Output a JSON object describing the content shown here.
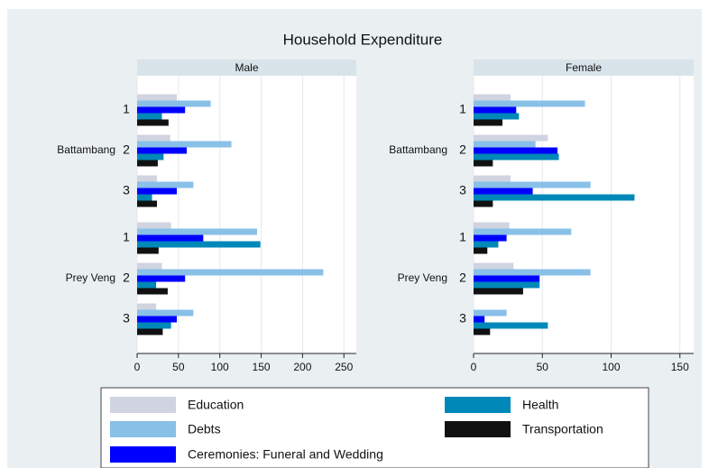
{
  "chart_data": {
    "type": "hbar",
    "title": "Household Expenditure",
    "groups": [
      {
        "name": "Battambang",
        "categories": [
          "1",
          "2",
          "3"
        ]
      },
      {
        "name": "Prey Veng",
        "categories": [
          "1",
          "2",
          "3"
        ]
      }
    ],
    "panels": [
      {
        "title": "Male",
        "xlim": [
          0,
          265
        ],
        "xticks": [
          0,
          50,
          100,
          150,
          200,
          250
        ],
        "series": [
          {
            "name": "Education",
            "color": "#d0d4e0",
            "values": [
              48,
              40,
              24,
              41,
              30,
              23
            ]
          },
          {
            "name": "Debts",
            "color": "#88c0e8",
            "values": [
              89,
              114,
              68,
              145,
              225,
              68
            ]
          },
          {
            "name": "Ceremonies: Funeral and Wedding",
            "color": "#0000ff",
            "values": [
              58,
              60,
              48,
              80,
              58,
              48
            ]
          },
          {
            "name": "Health",
            "color": "#0088b8",
            "values": [
              30,
              32,
              18,
              149,
              23,
              41
            ]
          },
          {
            "name": "Transportation",
            "color": "#111111",
            "values": [
              38,
              25,
              24,
              26,
              37,
              31
            ]
          }
        ]
      },
      {
        "title": "Female",
        "xlim": [
          0,
          160
        ],
        "xticks": [
          0,
          50,
          100,
          150
        ],
        "series": [
          {
            "name": "Education",
            "color": "#d0d4e0",
            "values": [
              27,
              54,
              27,
              26,
              29,
              0
            ]
          },
          {
            "name": "Debts",
            "color": "#88c0e8",
            "values": [
              81,
              45,
              85,
              71,
              85,
              24
            ]
          },
          {
            "name": "Ceremonies: Funeral and Wedding",
            "color": "#0000ff",
            "values": [
              31,
              61,
              43,
              24,
              48,
              8
            ]
          },
          {
            "name": "Health",
            "color": "#0088b8",
            "values": [
              33,
              62,
              117,
              18,
              48,
              54
            ]
          },
          {
            "name": "Transportation",
            "color": "#111111",
            "values": [
              21,
              14,
              14,
              10,
              36,
              12
            ]
          }
        ]
      }
    ]
  }
}
